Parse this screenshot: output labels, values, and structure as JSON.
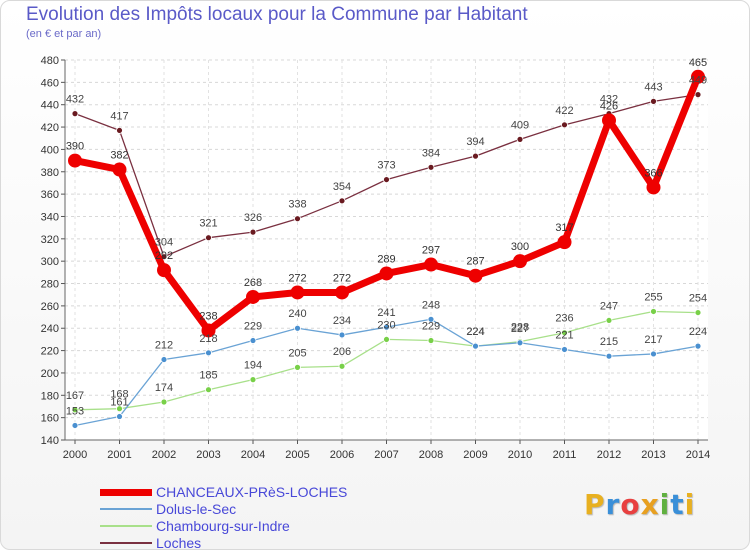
{
  "title": "Evolution des Impôts locaux pour la Commune par Habitant",
  "subtitle": "(en € et par an)",
  "logo": {
    "text": "Proxiti",
    "letters": [
      "P",
      "r",
      "o",
      "x",
      "i",
      "t",
      "i"
    ],
    "colors": [
      "#e8b020",
      "#3a8fd8",
      "#e84040",
      "#e8a020",
      "#60b040",
      "#3a8fd8",
      "#e8b020"
    ]
  },
  "chart_data": {
    "type": "line",
    "title": "Evolution des Impôts locaux pour la Commune par Habitant",
    "subtitle": "(en € et par an)",
    "xlabel": "",
    "ylabel": "",
    "ylim": [
      140,
      480
    ],
    "yticks": [
      140,
      160,
      180,
      200,
      220,
      240,
      260,
      280,
      300,
      320,
      340,
      360,
      380,
      400,
      420,
      440,
      460,
      480
    ],
    "x": [
      "2000",
      "2001",
      "2002",
      "2003",
      "2004",
      "2005",
      "2006",
      "2007",
      "2008",
      "2009",
      "2010",
      "2011",
      "2012",
      "2013",
      "2014"
    ],
    "grid": true,
    "legend_position": "bottom-left",
    "series": [
      {
        "name": "CHANCEAUX-PRèS-LOCHES",
        "color": "#ee0000",
        "marker_color": "#ee0000",
        "values": [
          390,
          382,
          292,
          238,
          268,
          272,
          272,
          289,
          297,
          287,
          300,
          317,
          426,
          366,
          465
        ],
        "labels": [
          "390",
          "382",
          "292",
          "238",
          "268",
          "272",
          "272",
          "289",
          "297",
          "287",
          "300",
          "317",
          "426",
          "366",
          "465"
        ]
      },
      {
        "name": "Dolus-le-Sec",
        "color": "#6aa3d5",
        "marker_color": "#4a90d0",
        "values": [
          153,
          161,
          212,
          218,
          229,
          240,
          234,
          241,
          248,
          224,
          227,
          221,
          215,
          217,
          224
        ],
        "labels": [
          "153",
          "161",
          "212",
          "218",
          "229",
          "240",
          "234",
          "241",
          "248",
          "224",
          "227",
          "221",
          "215",
          "217",
          "224"
        ]
      },
      {
        "name": "Chambourg-sur-Indre",
        "color": "#a8e08a",
        "marker_color": "#78d048",
        "values": [
          167,
          168,
          174,
          185,
          194,
          205,
          206,
          230,
          229,
          224,
          228,
          236,
          247,
          255,
          254
        ],
        "labels": [
          "167",
          "168",
          "174",
          "185",
          "194",
          "205",
          "206",
          "230",
          "229",
          "224",
          "228",
          "236",
          "247",
          "255",
          "254"
        ]
      },
      {
        "name": "Loches",
        "color": "#7a3040",
        "marker_color": "#6a1a20",
        "values": [
          432,
          417,
          304,
          321,
          326,
          338,
          354,
          373,
          384,
          394,
          409,
          422,
          432,
          443,
          449
        ],
        "labels": [
          "432",
          "417",
          "304",
          "321",
          "326",
          "338",
          "354",
          "373",
          "384",
          "394",
          "409",
          "422",
          "432",
          "443",
          "449"
        ]
      }
    ]
  }
}
